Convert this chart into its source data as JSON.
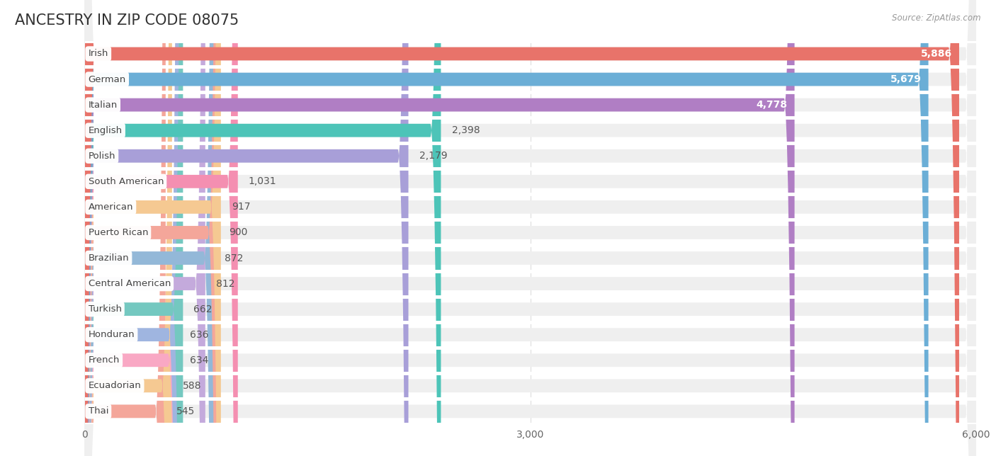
{
  "title": "ANCESTRY IN ZIP CODE 08075",
  "source": "Source: ZipAtlas.com",
  "categories": [
    "Irish",
    "German",
    "Italian",
    "English",
    "Polish",
    "South American",
    "American",
    "Puerto Rican",
    "Brazilian",
    "Central American",
    "Turkish",
    "Honduran",
    "French",
    "Ecuadorian",
    "Thai"
  ],
  "values": [
    5886,
    5679,
    4778,
    2398,
    2179,
    1031,
    917,
    900,
    872,
    812,
    662,
    636,
    634,
    588,
    545
  ],
  "bar_colors": [
    "#E8736A",
    "#6BAED6",
    "#B07EC4",
    "#4DC4B8",
    "#A89FD8",
    "#F48FB1",
    "#F5C992",
    "#F4A69A",
    "#93B8D8",
    "#C4AADC",
    "#74C8C0",
    "#9FB5E0",
    "#F9A8C4",
    "#F5C992",
    "#F4A69A"
  ],
  "xlim_max": 6000,
  "background_color": "#ffffff",
  "row_bg_color": "#efefef",
  "row_gap_color": "#ffffff",
  "value_inside_threshold": 4778,
  "title_fontsize": 15,
  "value_fontsize": 10,
  "label_fontsize": 9.5
}
